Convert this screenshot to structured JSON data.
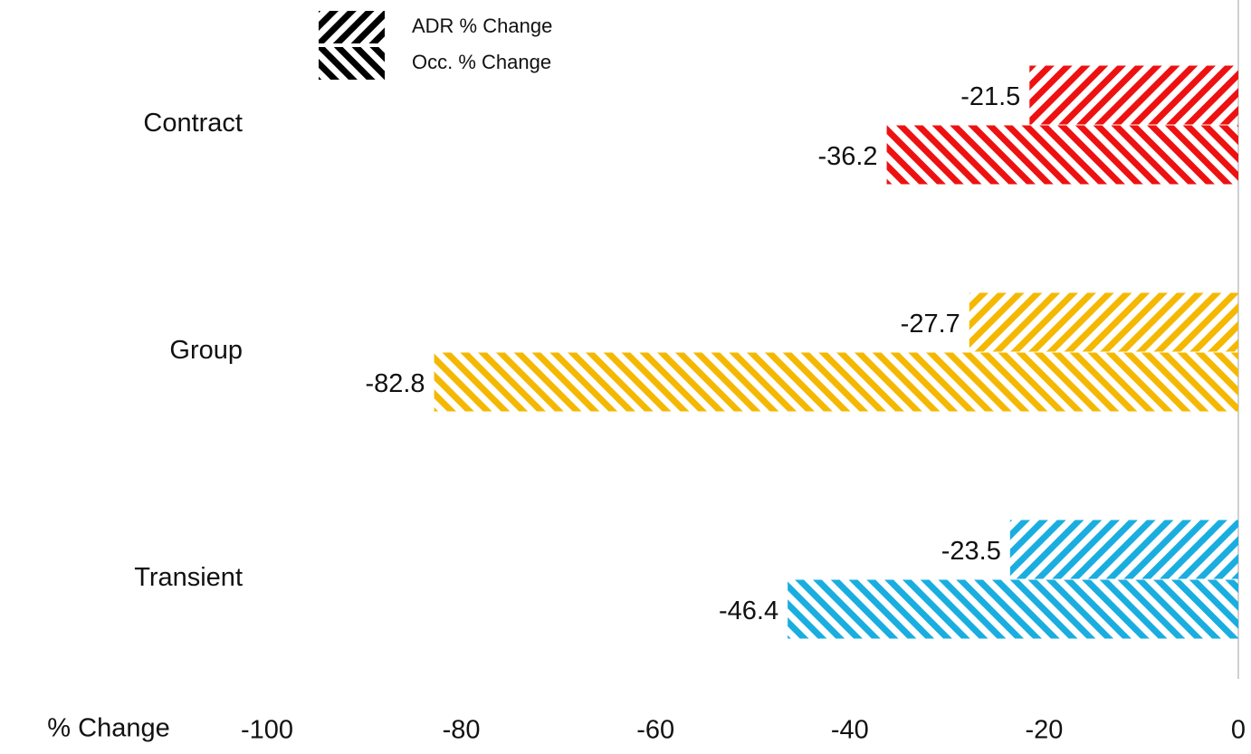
{
  "chart_data": {
    "type": "barh",
    "categories": [
      "Contract",
      "Group",
      "Transient"
    ],
    "category_colors": [
      "#ee1111",
      "#f5b800",
      "#1aaee0"
    ],
    "series": [
      {
        "name": "ADR % Change",
        "color": "#000000",
        "values": [
          -21.5,
          -27.7,
          -23.5
        ]
      },
      {
        "name": "Occ. % Change",
        "color": "#000000",
        "values": [
          -36.2,
          -82.8,
          -46.4
        ]
      }
    ],
    "xlabel": "% Change",
    "xlim": [
      -100,
      0
    ],
    "xticks": [
      -100,
      -80,
      -60,
      -40,
      -20,
      0
    ],
    "grid": false,
    "legend": "top"
  }
}
